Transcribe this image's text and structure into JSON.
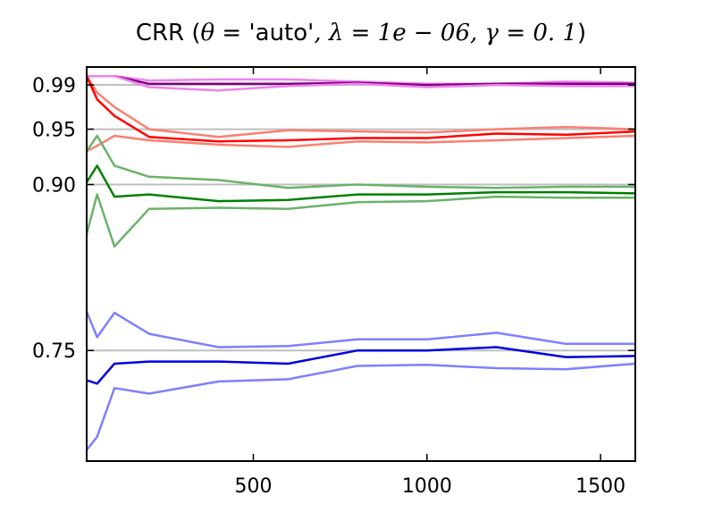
{
  "chart_data": {
    "type": "line",
    "title": {
      "prefix": "CRR (",
      "theta": "θ",
      "eq1": " = ",
      "theta_value": "'auto'",
      "sep1": ", ",
      "lambda": "λ",
      "eq2": " = ",
      "lambda_value": "1e − 06",
      "sep2": ", ",
      "gamma": "γ",
      "eq3": " = ",
      "gamma_value": "0. 1",
      "suffix": ")"
    },
    "xlabel": "",
    "ylabel": "",
    "xlim": [
      20,
      1600
    ],
    "ylim": [
      0.65,
      1.0062
    ],
    "xticks": [
      500,
      1000,
      1500
    ],
    "xtick_labels": [
      "500",
      "1000",
      "1500"
    ],
    "yticks": [
      0.75,
      0.9,
      0.95,
      0.99
    ],
    "ytick_labels": [
      "0.75",
      "0.90",
      "0.95",
      "0.99"
    ],
    "reference_lines": [
      0.75,
      0.9,
      0.95,
      0.99
    ],
    "reference_line_color": "#bfbfbf",
    "grid": false,
    "legend": "none",
    "x": [
      20,
      50,
      100,
      200,
      400,
      600,
      800,
      1000,
      1200,
      1400,
      1600
    ],
    "series": [
      {
        "color": "#ee82ee",
        "opacity": 1.0,
        "values": [
          0.998,
          0.998,
          0.998,
          0.994,
          0.995,
          0.995,
          0.993,
          0.991,
          0.991,
          0.993,
          0.992
        ]
      },
      {
        "color": "#800080",
        "opacity": 1.0,
        "values": [
          0.998,
          0.998,
          0.998,
          0.991,
          0.991,
          0.991,
          0.992,
          0.99,
          0.991,
          0.991,
          0.991
        ]
      },
      {
        "color": "#ee82ee",
        "opacity": 1.0,
        "values": [
          0.998,
          0.998,
          0.998,
          0.988,
          0.985,
          0.989,
          0.991,
          0.988,
          0.99,
          0.989,
          0.989
        ]
      },
      {
        "color": "#fa8072",
        "opacity": 1.0,
        "values": [
          0.998,
          0.983,
          0.97,
          0.95,
          0.943,
          0.949,
          0.948,
          0.947,
          0.95,
          0.952,
          0.95
        ]
      },
      {
        "color": "#ff0000",
        "opacity": 1.0,
        "values": [
          0.998,
          0.977,
          0.962,
          0.943,
          0.939,
          0.94,
          0.942,
          0.942,
          0.946,
          0.945,
          0.948
        ]
      },
      {
        "color": "#fa8072",
        "opacity": 1.0,
        "values": [
          0.93,
          0.935,
          0.944,
          0.94,
          0.936,
          0.934,
          0.939,
          0.938,
          0.94,
          0.942,
          0.944
        ]
      },
      {
        "color": "#6ab26a",
        "opacity": 1.0,
        "values": [
          0.93,
          0.944,
          0.917,
          0.907,
          0.904,
          0.897,
          0.9,
          0.898,
          0.897,
          0.898,
          0.898
        ]
      },
      {
        "color": "#008000",
        "opacity": 1.0,
        "values": [
          0.902,
          0.917,
          0.889,
          0.891,
          0.885,
          0.886,
          0.891,
          0.891,
          0.893,
          0.893,
          0.892
        ]
      },
      {
        "color": "#6ab26a",
        "opacity": 1.0,
        "values": [
          0.855,
          0.891,
          0.844,
          0.878,
          0.879,
          0.878,
          0.884,
          0.885,
          0.889,
          0.888,
          0.888
        ]
      },
      {
        "color": "#7f7fff",
        "opacity": 1.0,
        "values": [
          0.785,
          0.762,
          0.784,
          0.765,
          0.753,
          0.754,
          0.76,
          0.76,
          0.766,
          0.756,
          0.756
        ]
      },
      {
        "color": "#0000dd",
        "opacity": 1.0,
        "values": [
          0.723,
          0.72,
          0.738,
          0.74,
          0.74,
          0.738,
          0.75,
          0.75,
          0.753,
          0.744,
          0.745
        ]
      },
      {
        "color": "#7f7fff",
        "opacity": 1.0,
        "values": [
          0.66,
          0.672,
          0.716,
          0.711,
          0.722,
          0.724,
          0.736,
          0.737,
          0.734,
          0.733,
          0.738
        ]
      }
    ]
  }
}
